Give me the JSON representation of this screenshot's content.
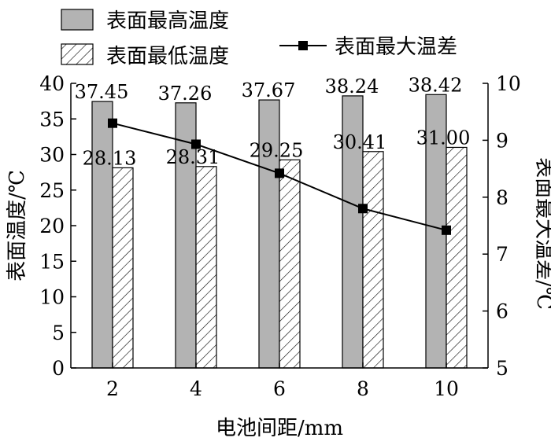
{
  "chart_data": {
    "type": "bar",
    "categories": [
      "2",
      "4",
      "6",
      "8",
      "10"
    ],
    "xlabel": "电池间距/mm",
    "ylabel": "表面温度/℃",
    "y2label": "表面最大温差/℃",
    "ylim": [
      0,
      40
    ],
    "y2lim": [
      5,
      10
    ],
    "yticks": [
      "0",
      "5",
      "10",
      "15",
      "20",
      "25",
      "30",
      "35",
      "40"
    ],
    "y2ticks": [
      "5",
      "6",
      "7",
      "8",
      "9",
      "10"
    ],
    "grid": false,
    "legend_position": "top",
    "series": [
      {
        "name": "表面最高温度",
        "kind": "bar",
        "style": "solid-gray",
        "color": "#b3b3b3",
        "axis": "left",
        "values": [
          37.45,
          37.26,
          37.67,
          38.24,
          38.42
        ],
        "labels": [
          "37.45",
          "37.26",
          "37.67",
          "38.24",
          "38.42"
        ]
      },
      {
        "name": "表面最低温度",
        "kind": "bar",
        "style": "hatched",
        "color": "#ffffff",
        "axis": "left",
        "values": [
          28.13,
          28.31,
          29.25,
          30.41,
          31.0
        ],
        "labels": [
          "28.13",
          "28.31",
          "29.25",
          "30.41",
          "31.00"
        ]
      },
      {
        "name": "表面最大温差",
        "kind": "line",
        "marker": "square",
        "color": "#000000",
        "axis": "right",
        "values": [
          9.3,
          8.93,
          8.42,
          7.8,
          7.42
        ]
      }
    ]
  }
}
